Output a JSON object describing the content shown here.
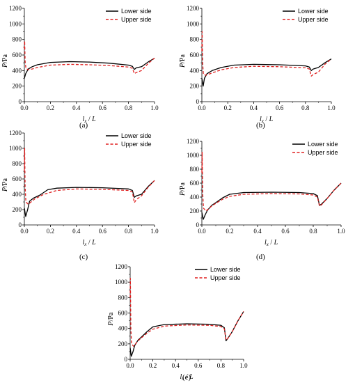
{
  "chart_data": [
    {
      "type": "line",
      "panel_label": "(a)",
      "xlabel": "l_x / L",
      "ylabel": "P/Pa",
      "xlim": [
        0,
        1
      ],
      "ylim": [
        0,
        1200
      ],
      "x_ticks": [
        "0.0",
        "0.2",
        "0.4",
        "0.6",
        "0.8",
        "1.0"
      ],
      "y_ticks": [
        "0",
        "200",
        "400",
        "600",
        "800",
        "1000",
        "1200"
      ],
      "legend": "top-right",
      "series": [
        {
          "name": "Lower side",
          "color": "#000000",
          "dash": "solid",
          "x": [
            0.0,
            0.01,
            0.03,
            0.06,
            0.1,
            0.2,
            0.35,
            0.5,
            0.65,
            0.8,
            0.83,
            0.845,
            0.86,
            0.9,
            0.95,
            1.0
          ],
          "y": [
            300,
            360,
            420,
            450,
            475,
            505,
            515,
            510,
            495,
            470,
            455,
            415,
            435,
            450,
            510,
            560
          ]
        },
        {
          "name": "Upper side",
          "color": "#e02020",
          "dash": "dashed",
          "x": [
            0.0,
            0.002,
            0.006,
            0.012,
            0.03,
            0.06,
            0.1,
            0.2,
            0.35,
            0.5,
            0.65,
            0.8,
            0.83,
            0.845,
            0.86,
            0.9,
            0.95,
            1.0
          ],
          "y": [
            680,
            780,
            520,
            430,
            410,
            420,
            440,
            470,
            480,
            475,
            465,
            445,
            430,
            360,
            375,
            400,
            490,
            560
          ]
        }
      ]
    },
    {
      "type": "line",
      "panel_label": "(b)",
      "xlabel": "l_x / L",
      "ylabel": "P/Pa",
      "xlim": [
        0,
        1
      ],
      "ylim": [
        0,
        1200
      ],
      "x_ticks": [
        "0.0",
        "0.2",
        "0.4",
        "0.6",
        "0.8",
        "1.0"
      ],
      "y_ticks": [
        "0",
        "200",
        "400",
        "600",
        "800",
        "1000",
        "1200"
      ],
      "legend": "top-right",
      "series": [
        {
          "name": "Lower side",
          "color": "#000000",
          "dash": "solid",
          "x": [
            0.0,
            0.01,
            0.02,
            0.04,
            0.08,
            0.15,
            0.25,
            0.4,
            0.6,
            0.8,
            0.83,
            0.845,
            0.86,
            0.9,
            0.95,
            1.0
          ],
          "y": [
            300,
            200,
            300,
            360,
            400,
            440,
            470,
            480,
            475,
            460,
            445,
            400,
            420,
            440,
            500,
            550
          ]
        },
        {
          "name": "Upper side",
          "color": "#e02020",
          "dash": "dashed",
          "x": [
            0.0,
            0.002,
            0.006,
            0.012,
            0.03,
            0.08,
            0.15,
            0.25,
            0.4,
            0.6,
            0.8,
            0.83,
            0.845,
            0.86,
            0.9,
            0.95,
            1.0
          ],
          "y": [
            650,
            900,
            500,
            350,
            340,
            370,
            410,
            440,
            455,
            450,
            435,
            420,
            330,
            350,
            380,
            480,
            550
          ]
        }
      ]
    },
    {
      "type": "line",
      "panel_label": "(c)",
      "xlabel": "l_x / L",
      "ylabel": "P/Pa",
      "xlim": [
        0,
        1
      ],
      "ylim": [
        0,
        1200
      ],
      "x_ticks": [
        "0.0",
        "0.2",
        "0.4",
        "0.6",
        "0.8",
        "1.0"
      ],
      "y_ticks": [
        "0",
        "200",
        "400",
        "600",
        "800",
        "1000",
        "1200"
      ],
      "legend": "top-right",
      "series": [
        {
          "name": "Lower side",
          "color": "#000000",
          "dash": "solid",
          "x": [
            0.0,
            0.01,
            0.025,
            0.04,
            0.07,
            0.12,
            0.18,
            0.25,
            0.4,
            0.6,
            0.8,
            0.83,
            0.845,
            0.86,
            0.9,
            0.95,
            1.0
          ],
          "y": [
            220,
            110,
            200,
            310,
            350,
            390,
            460,
            480,
            490,
            485,
            470,
            450,
            360,
            380,
            400,
            500,
            580
          ]
        },
        {
          "name": "Upper side",
          "color": "#e02020",
          "dash": "dashed",
          "x": [
            0.0,
            0.002,
            0.006,
            0.012,
            0.03,
            0.08,
            0.15,
            0.25,
            0.4,
            0.6,
            0.8,
            0.83,
            0.845,
            0.86,
            0.9,
            0.95,
            1.0
          ],
          "y": [
            700,
            1000,
            500,
            300,
            270,
            340,
            400,
            450,
            470,
            465,
            450,
            430,
            290,
            330,
            380,
            490,
            580
          ]
        }
      ]
    },
    {
      "type": "line",
      "panel_label": "(d)",
      "xlabel": "l_x / L",
      "ylabel": "P/Pa",
      "xlim": [
        0,
        1
      ],
      "ylim": [
        0,
        1200
      ],
      "x_ticks": [
        "0.0",
        "0.2",
        "0.4",
        "0.6",
        "0.8",
        "1.0"
      ],
      "y_ticks": [
        "0",
        "200",
        "400",
        "600",
        "800",
        "1000",
        "1200"
      ],
      "legend": "top-right",
      "series": [
        {
          "name": "Lower side",
          "color": "#000000",
          "dash": "solid",
          "x": [
            0.0,
            0.01,
            0.025,
            0.04,
            0.07,
            0.1,
            0.15,
            0.2,
            0.3,
            0.5,
            0.7,
            0.8,
            0.83,
            0.845,
            0.86,
            0.9,
            0.95,
            1.0
          ],
          "y": [
            180,
            80,
            150,
            210,
            280,
            320,
            390,
            440,
            465,
            470,
            465,
            450,
            420,
            280,
            300,
            380,
            500,
            600
          ]
        },
        {
          "name": "Upper side",
          "color": "#e02020",
          "dash": "dashed",
          "x": [
            0.0,
            0.002,
            0.006,
            0.012,
            0.03,
            0.07,
            0.1,
            0.15,
            0.2,
            0.3,
            0.5,
            0.7,
            0.8,
            0.83,
            0.845,
            0.86,
            0.9,
            0.95,
            1.0
          ],
          "y": [
            750,
            1050,
            450,
            240,
            200,
            270,
            310,
            370,
            410,
            440,
            450,
            445,
            430,
            400,
            270,
            290,
            380,
            500,
            600
          ]
        }
      ]
    },
    {
      "type": "line",
      "panel_label": "(e)",
      "xlabel": "l_x / L",
      "ylabel": "P/Pa",
      "xlim": [
        0,
        1
      ],
      "ylim": [
        0,
        1200
      ],
      "x_ticks": [
        "0.0",
        "0.2",
        "0.4",
        "0.6",
        "0.8",
        "1.0"
      ],
      "y_ticks": [
        "0",
        "200",
        "400",
        "600",
        "800",
        "1000",
        "1200"
      ],
      "legend": "top-right",
      "series": [
        {
          "name": "Lower side",
          "color": "#000000",
          "dash": "solid",
          "x": [
            0.0,
            0.01,
            0.025,
            0.04,
            0.07,
            0.1,
            0.15,
            0.2,
            0.3,
            0.5,
            0.7,
            0.8,
            0.83,
            0.845,
            0.86,
            0.9,
            0.95,
            1.0
          ],
          "y": [
            150,
            40,
            100,
            180,
            250,
            290,
            360,
            420,
            450,
            460,
            455,
            440,
            410,
            240,
            270,
            360,
            500,
            620
          ]
        },
        {
          "name": "Upper side",
          "color": "#e02020",
          "dash": "dashed",
          "x": [
            0.0,
            0.002,
            0.006,
            0.012,
            0.03,
            0.07,
            0.1,
            0.15,
            0.2,
            0.3,
            0.5,
            0.7,
            0.8,
            0.83,
            0.845,
            0.86,
            0.9,
            0.95,
            1.0
          ],
          "y": [
            800,
            1050,
            400,
            200,
            170,
            240,
            280,
            340,
            390,
            430,
            445,
            440,
            425,
            395,
            250,
            270,
            360,
            500,
            620
          ]
        }
      ]
    }
  ]
}
